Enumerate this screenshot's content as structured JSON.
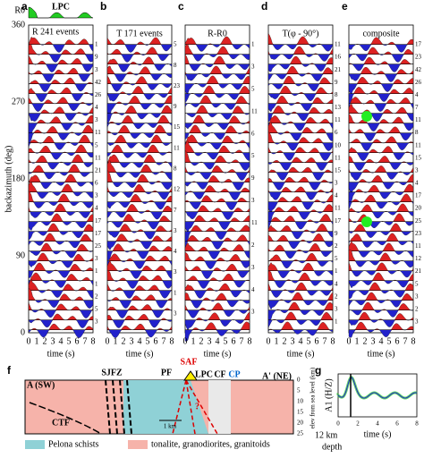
{
  "panels": [
    {
      "letter": "a",
      "title": "LPC",
      "subtitle": "R 241 events",
      "counts": [
        "1",
        "9",
        "3",
        "42",
        "26",
        "4",
        "3",
        "11",
        "5",
        "11",
        "21",
        "6",
        "3",
        "4",
        "17",
        "17",
        "25",
        "3",
        "1",
        "1",
        "2",
        "5",
        "3"
      ]
    },
    {
      "letter": "b",
      "title": "T 171 events",
      "counts": [
        "5",
        "8",
        "23",
        "9",
        "15",
        "11",
        "8",
        "12",
        "7",
        "3",
        "4",
        "3",
        "1",
        "3"
      ]
    },
    {
      "letter": "c",
      "title": "R-R0",
      "counts": [
        "1",
        "3",
        "5",
        "11",
        "6",
        "5",
        "9",
        "3",
        "11",
        "2",
        "3",
        "4",
        "3"
      ]
    },
    {
      "letter": "d",
      "title": "T(φ - 90°)",
      "counts": [
        "11",
        "16",
        "21",
        "9",
        "8",
        "13",
        "11",
        "6",
        "10",
        "11",
        "15",
        "3",
        "4",
        "11",
        "17",
        "9",
        "2",
        "5",
        "1",
        "4",
        "2",
        "3",
        "1"
      ]
    },
    {
      "letter": "e",
      "title": "composite",
      "counts": [
        "17",
        "23",
        "42",
        "26",
        "4",
        "7",
        "11",
        "8",
        "11",
        "15",
        "3",
        "4",
        "17",
        "20",
        "25",
        "23",
        "11",
        "12",
        "21",
        "5",
        "3",
        "2",
        "3"
      ]
    }
  ],
  "r0_label": "R0",
  "y_axis": {
    "label": "backazimuth (deg)",
    "ticks": [
      "0",
      "90",
      "180",
      "270",
      "360"
    ]
  },
  "x_axis": {
    "label": "time (s)",
    "ticks": [
      "0",
      "1",
      "2",
      "3",
      "4",
      "5",
      "6",
      "7",
      "8"
    ]
  },
  "section": {
    "letter": "f",
    "left": "A (SW)",
    "right": "A' (NE)",
    "faults": [
      "SJFZ",
      "PF",
      "SAF",
      "LPC",
      "CF",
      "CP",
      "CTF"
    ],
    "question": "?",
    "scale": "1 km",
    "y_label": "elev from sea level (km)",
    "y_ticks": [
      "0",
      "5",
      "10",
      "15",
      "20",
      "25"
    ],
    "legend": [
      "Pelona schists",
      "tonalite, granodiorites, granitoids"
    ]
  },
  "inset": {
    "letter": "g",
    "y_label": "A1 (H/Z)",
    "x_label": "time (s)",
    "x_ticks": [
      "0",
      "2",
      "4",
      "6",
      "8"
    ],
    "depth": "12 km",
    "depth2": "depth"
  }
}
